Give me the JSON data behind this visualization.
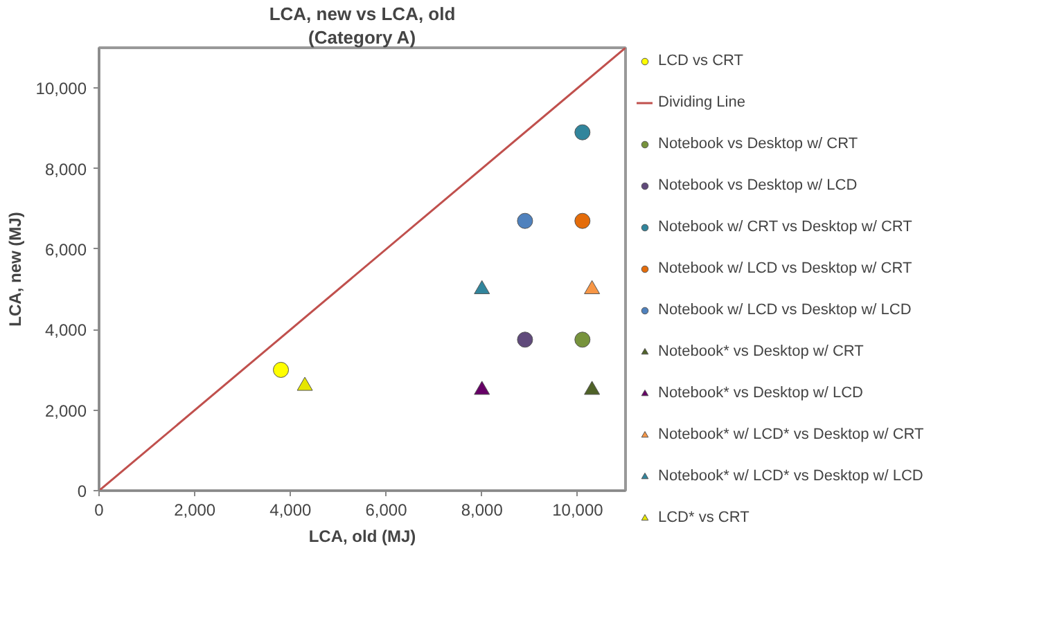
{
  "chart_data": {
    "type": "scatter",
    "title": "LCA, new vs LCA, old",
    "subtitle": "(Category A)",
    "xlabel": "LCA, old (MJ)",
    "ylabel": "LCA, new (MJ)",
    "xlim": [
      0,
      11000
    ],
    "ylim": [
      0,
      11000
    ],
    "xticks": [
      0,
      {
        "value": 2000,
        "label": "2,000"
      },
      {
        "value": 4000,
        "label": "4,000"
      },
      {
        "value": 6000,
        "label": "6,000"
      },
      {
        "value": 8000,
        "label": "8,000"
      },
      {
        "value": 10000,
        "label": "10,000"
      }
    ],
    "yticks": [
      0,
      {
        "value": 2000,
        "label": "2,000"
      },
      {
        "value": 4000,
        "label": "4,000"
      },
      {
        "value": 6000,
        "label": "6,000"
      },
      {
        "value": 8000,
        "label": "8,000"
      },
      {
        "value": 10000,
        "label": "10,000"
      }
    ],
    "grid": false,
    "legend": "right",
    "series": [
      {
        "name": "LCD vs CRT",
        "color": "#ffff00",
        "marker": "circle",
        "x": [
          3800
        ],
        "values": [
          3000
        ]
      },
      {
        "name": "Dividing Line",
        "type": "line",
        "color": "#c0504d",
        "marker": "none",
        "x": [
          0,
          11000
        ],
        "values": [
          0,
          11000
        ]
      },
      {
        "name": "Notebook vs Desktop w/ CRT",
        "color": "#77933c",
        "marker": "circle",
        "x": [
          10100
        ],
        "values": [
          3750
        ]
      },
      {
        "name": "Notebook vs Desktop w/ LCD",
        "color": "#604a7b",
        "marker": "circle",
        "x": [
          8900
        ],
        "values": [
          3750
        ]
      },
      {
        "name": "Notebook w/ CRT vs Desktop w/ CRT",
        "color": "#31859c",
        "marker": "circle",
        "x": [
          10100
        ],
        "values": [
          8900
        ]
      },
      {
        "name": "Notebook w/ LCD vs Desktop w/ CRT",
        "color": "#e46c0a",
        "marker": "circle",
        "x": [
          10100
        ],
        "values": [
          6700
        ]
      },
      {
        "name": "Notebook w/ LCD vs Desktop w/ LCD",
        "color": "#4f81bd",
        "marker": "circle",
        "x": [
          8900
        ],
        "values": [
          6700
        ]
      },
      {
        "name": "Notebook* vs Desktop w/ CRT",
        "color": "#4f6228",
        "marker": "triangle",
        "x": [
          10300
        ],
        "values": [
          2500
        ]
      },
      {
        "name": "Notebook* vs Desktop w/ LCD",
        "color": "#660066",
        "marker": "triangle",
        "x": [
          8000
        ],
        "values": [
          2500
        ]
      },
      {
        "name": "Notebook* w/ LCD* vs Desktop w/ CRT",
        "color": "#f79646",
        "marker": "triangle",
        "x": [
          10300
        ],
        "values": [
          5000
        ]
      },
      {
        "name": "Notebook* w/ LCD* vs Desktop w/ LCD",
        "color": "#31859c",
        "marker": "triangle",
        "x": [
          8000
        ],
        "values": [
          5000
        ]
      },
      {
        "name": "LCD* vs CRT",
        "color": "#e6e600",
        "marker": "triangle",
        "x": [
          4300
        ],
        "values": [
          2600
        ]
      }
    ]
  }
}
